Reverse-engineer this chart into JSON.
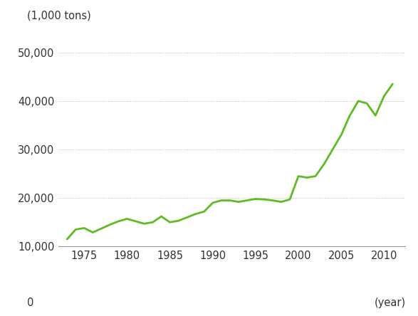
{
  "years": [
    1973,
    1974,
    1975,
    1976,
    1977,
    1978,
    1979,
    1980,
    1981,
    1982,
    1983,
    1984,
    1985,
    1986,
    1987,
    1988,
    1989,
    1990,
    1991,
    1992,
    1993,
    1994,
    1995,
    1996,
    1997,
    1998,
    1999,
    2000,
    2001,
    2002,
    2003,
    2004,
    2005,
    2006,
    2007,
    2008,
    2009,
    2010,
    2011
  ],
  "values": [
    11500,
    13500,
    13800,
    12900,
    13700,
    14500,
    15200,
    15700,
    15200,
    14700,
    15000,
    16200,
    15000,
    15300,
    16000,
    16700,
    17200,
    19000,
    19500,
    19500,
    19200,
    19500,
    19800,
    19700,
    19500,
    19200,
    19700,
    24500,
    24200,
    24500,
    27000,
    30000,
    33000,
    37000,
    40000,
    39500,
    37000,
    41000,
    43500
  ],
  "line_color": "#5abf1e",
  "line_width": 2.0,
  "background_color": "#ffffff",
  "ylabel": "(1,000 tons)",
  "xlabel": "(year)",
  "yticks": [
    10000,
    20000,
    30000,
    40000,
    50000
  ],
  "ytick_labels": [
    "10,000",
    "20,000",
    "30,000",
    "40,000",
    "50,000"
  ],
  "xticks": [
    1975,
    1980,
    1985,
    1990,
    1995,
    2000,
    2005,
    2010
  ],
  "ylim": [
    10000,
    53000
  ],
  "xlim": [
    1972,
    2012.5
  ],
  "grid_color": "#bbbbbb",
  "axis_color": "#999999",
  "text_color": "#333333",
  "fontsize_ticks": 10.5,
  "fontsize_label": 10.5
}
